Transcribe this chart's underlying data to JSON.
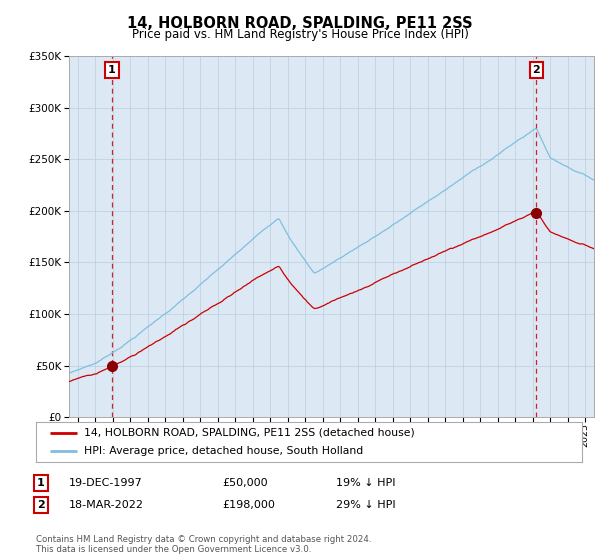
{
  "title": "14, HOLBORN ROAD, SPALDING, PE11 2SS",
  "subtitle": "Price paid vs. HM Land Registry's House Price Index (HPI)",
  "legend_line1": "14, HOLBORN ROAD, SPALDING, PE11 2SS (detached house)",
  "legend_line2": "HPI: Average price, detached house, South Holland",
  "footer1": "Contains HM Land Registry data © Crown copyright and database right 2024.",
  "footer2": "This data is licensed under the Open Government Licence v3.0.",
  "sale1_label": "1",
  "sale1_date": "19-DEC-1997",
  "sale1_price": "£50,000",
  "sale1_hpi": "19% ↓ HPI",
  "sale2_label": "2",
  "sale2_date": "18-MAR-2022",
  "sale2_price": "£198,000",
  "sale2_hpi": "29% ↓ HPI",
  "sale1_year": 1997.96,
  "sale1_value": 50000,
  "sale2_year": 2022.21,
  "sale2_value": 198000,
  "hpi_color": "#7fbfdf",
  "price_color": "#cc0000",
  "sale_marker_color": "#8b0000",
  "dashed_line_color": "#cc0000",
  "chart_bg_color": "#dce9f5",
  "background_color": "#ffffff",
  "grid_color": "#b8cfe0",
  "ylim_min": 0,
  "ylim_max": 350000,
  "xlim_min": 1995.5,
  "xlim_max": 2025.5
}
